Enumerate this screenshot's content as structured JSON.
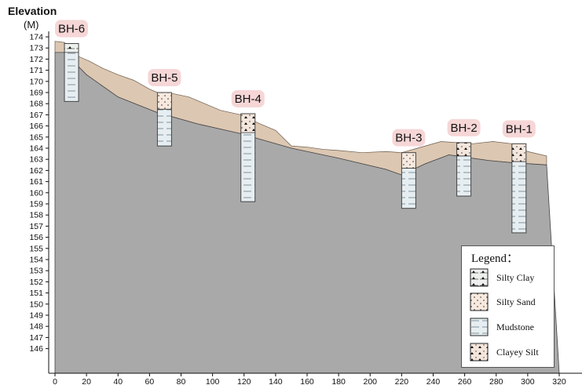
{
  "axis": {
    "ylabel": "Elevation",
    "yunit": "(M)",
    "y_ticks": [
      174,
      173,
      172,
      171,
      170,
      169,
      168,
      167,
      166,
      165,
      164,
      163,
      162,
      161,
      160,
      159,
      158,
      157,
      156,
      155,
      154,
      153,
      152,
      151,
      150,
      149,
      148,
      147,
      146
    ],
    "x_ticks": [
      0,
      20,
      40,
      60,
      80,
      100,
      120,
      140,
      160,
      180,
      200,
      220,
      240,
      260,
      280,
      300,
      320
    ]
  },
  "colors": {
    "bedrock": "#a9a9a9",
    "overburden": "#dcc7b2",
    "label_bg": "#f6d6d6",
    "log_fill": "#e6eef2"
  },
  "boreholes": [
    {
      "name": "BH-6",
      "x": 6,
      "top": 173.4,
      "bottom": 168.2,
      "overburden_bottom": 172.6,
      "upper_layer": "Silty Clay"
    },
    {
      "name": "BH-5",
      "x": 65,
      "top": 169.0,
      "bottom": 164.2,
      "overburden_bottom": 167.5,
      "upper_layer": "Silty Sand"
    },
    {
      "name": "BH-4",
      "x": 118,
      "top": 167.1,
      "bottom": 159.2,
      "overburden_bottom": 165.4,
      "upper_layer": "Clayey Silt"
    },
    {
      "name": "BH-3",
      "x": 220,
      "top": 163.6,
      "bottom": 158.6,
      "overburden_bottom": 162.2,
      "upper_layer": "Silty Sand"
    },
    {
      "name": "BH-2",
      "x": 255,
      "top": 164.5,
      "bottom": 159.7,
      "overburden_bottom": 163.3,
      "upper_layer": "Clayey Silt"
    },
    {
      "name": "BH-1",
      "x": 290,
      "top": 164.4,
      "bottom": 156.4,
      "overburden_bottom": 162.8,
      "upper_layer": "Clayey Silt"
    }
  ],
  "ground_surface": [
    [
      0,
      173.6
    ],
    [
      6,
      173.5
    ],
    [
      14,
      172.3
    ],
    [
      22,
      171.8
    ],
    [
      30,
      171.2
    ],
    [
      40,
      170.6
    ],
    [
      50,
      170.1
    ],
    [
      60,
      169.3
    ],
    [
      65,
      169.0
    ],
    [
      75,
      168.9
    ],
    [
      85,
      168.6
    ],
    [
      95,
      168.0
    ],
    [
      105,
      167.4
    ],
    [
      118,
      167.0
    ],
    [
      130,
      166.2
    ],
    [
      140,
      165.6
    ],
    [
      150,
      164.2
    ],
    [
      160,
      164.1
    ],
    [
      170,
      163.9
    ],
    [
      180,
      163.8
    ],
    [
      195,
      163.6
    ],
    [
      210,
      163.7
    ],
    [
      220,
      163.6
    ],
    [
      230,
      164.0
    ],
    [
      245,
      164.6
    ],
    [
      255,
      164.5
    ],
    [
      265,
      164.4
    ],
    [
      278,
      164.6
    ],
    [
      290,
      164.4
    ],
    [
      300,
      163.7
    ],
    [
      312,
      163.3
    ]
  ],
  "rock_surface": [
    [
      0,
      172.6
    ],
    [
      6,
      172.6
    ],
    [
      20,
      170.6
    ],
    [
      40,
      168.6
    ],
    [
      65,
      167.2
    ],
    [
      90,
      166.2
    ],
    [
      118,
      165.3
    ],
    [
      150,
      164.0
    ],
    [
      180,
      163.1
    ],
    [
      210,
      162.1
    ],
    [
      220,
      161.6
    ],
    [
      235,
      162.6
    ],
    [
      250,
      163.4
    ],
    [
      255,
      163.3
    ],
    [
      275,
      162.9
    ],
    [
      290,
      162.7
    ],
    [
      312,
      162.5
    ]
  ],
  "legend": {
    "title": "Legend：",
    "items": [
      "Silty Clay",
      "Silty Sand",
      "Mudstone",
      "Clayey Silt"
    ]
  }
}
